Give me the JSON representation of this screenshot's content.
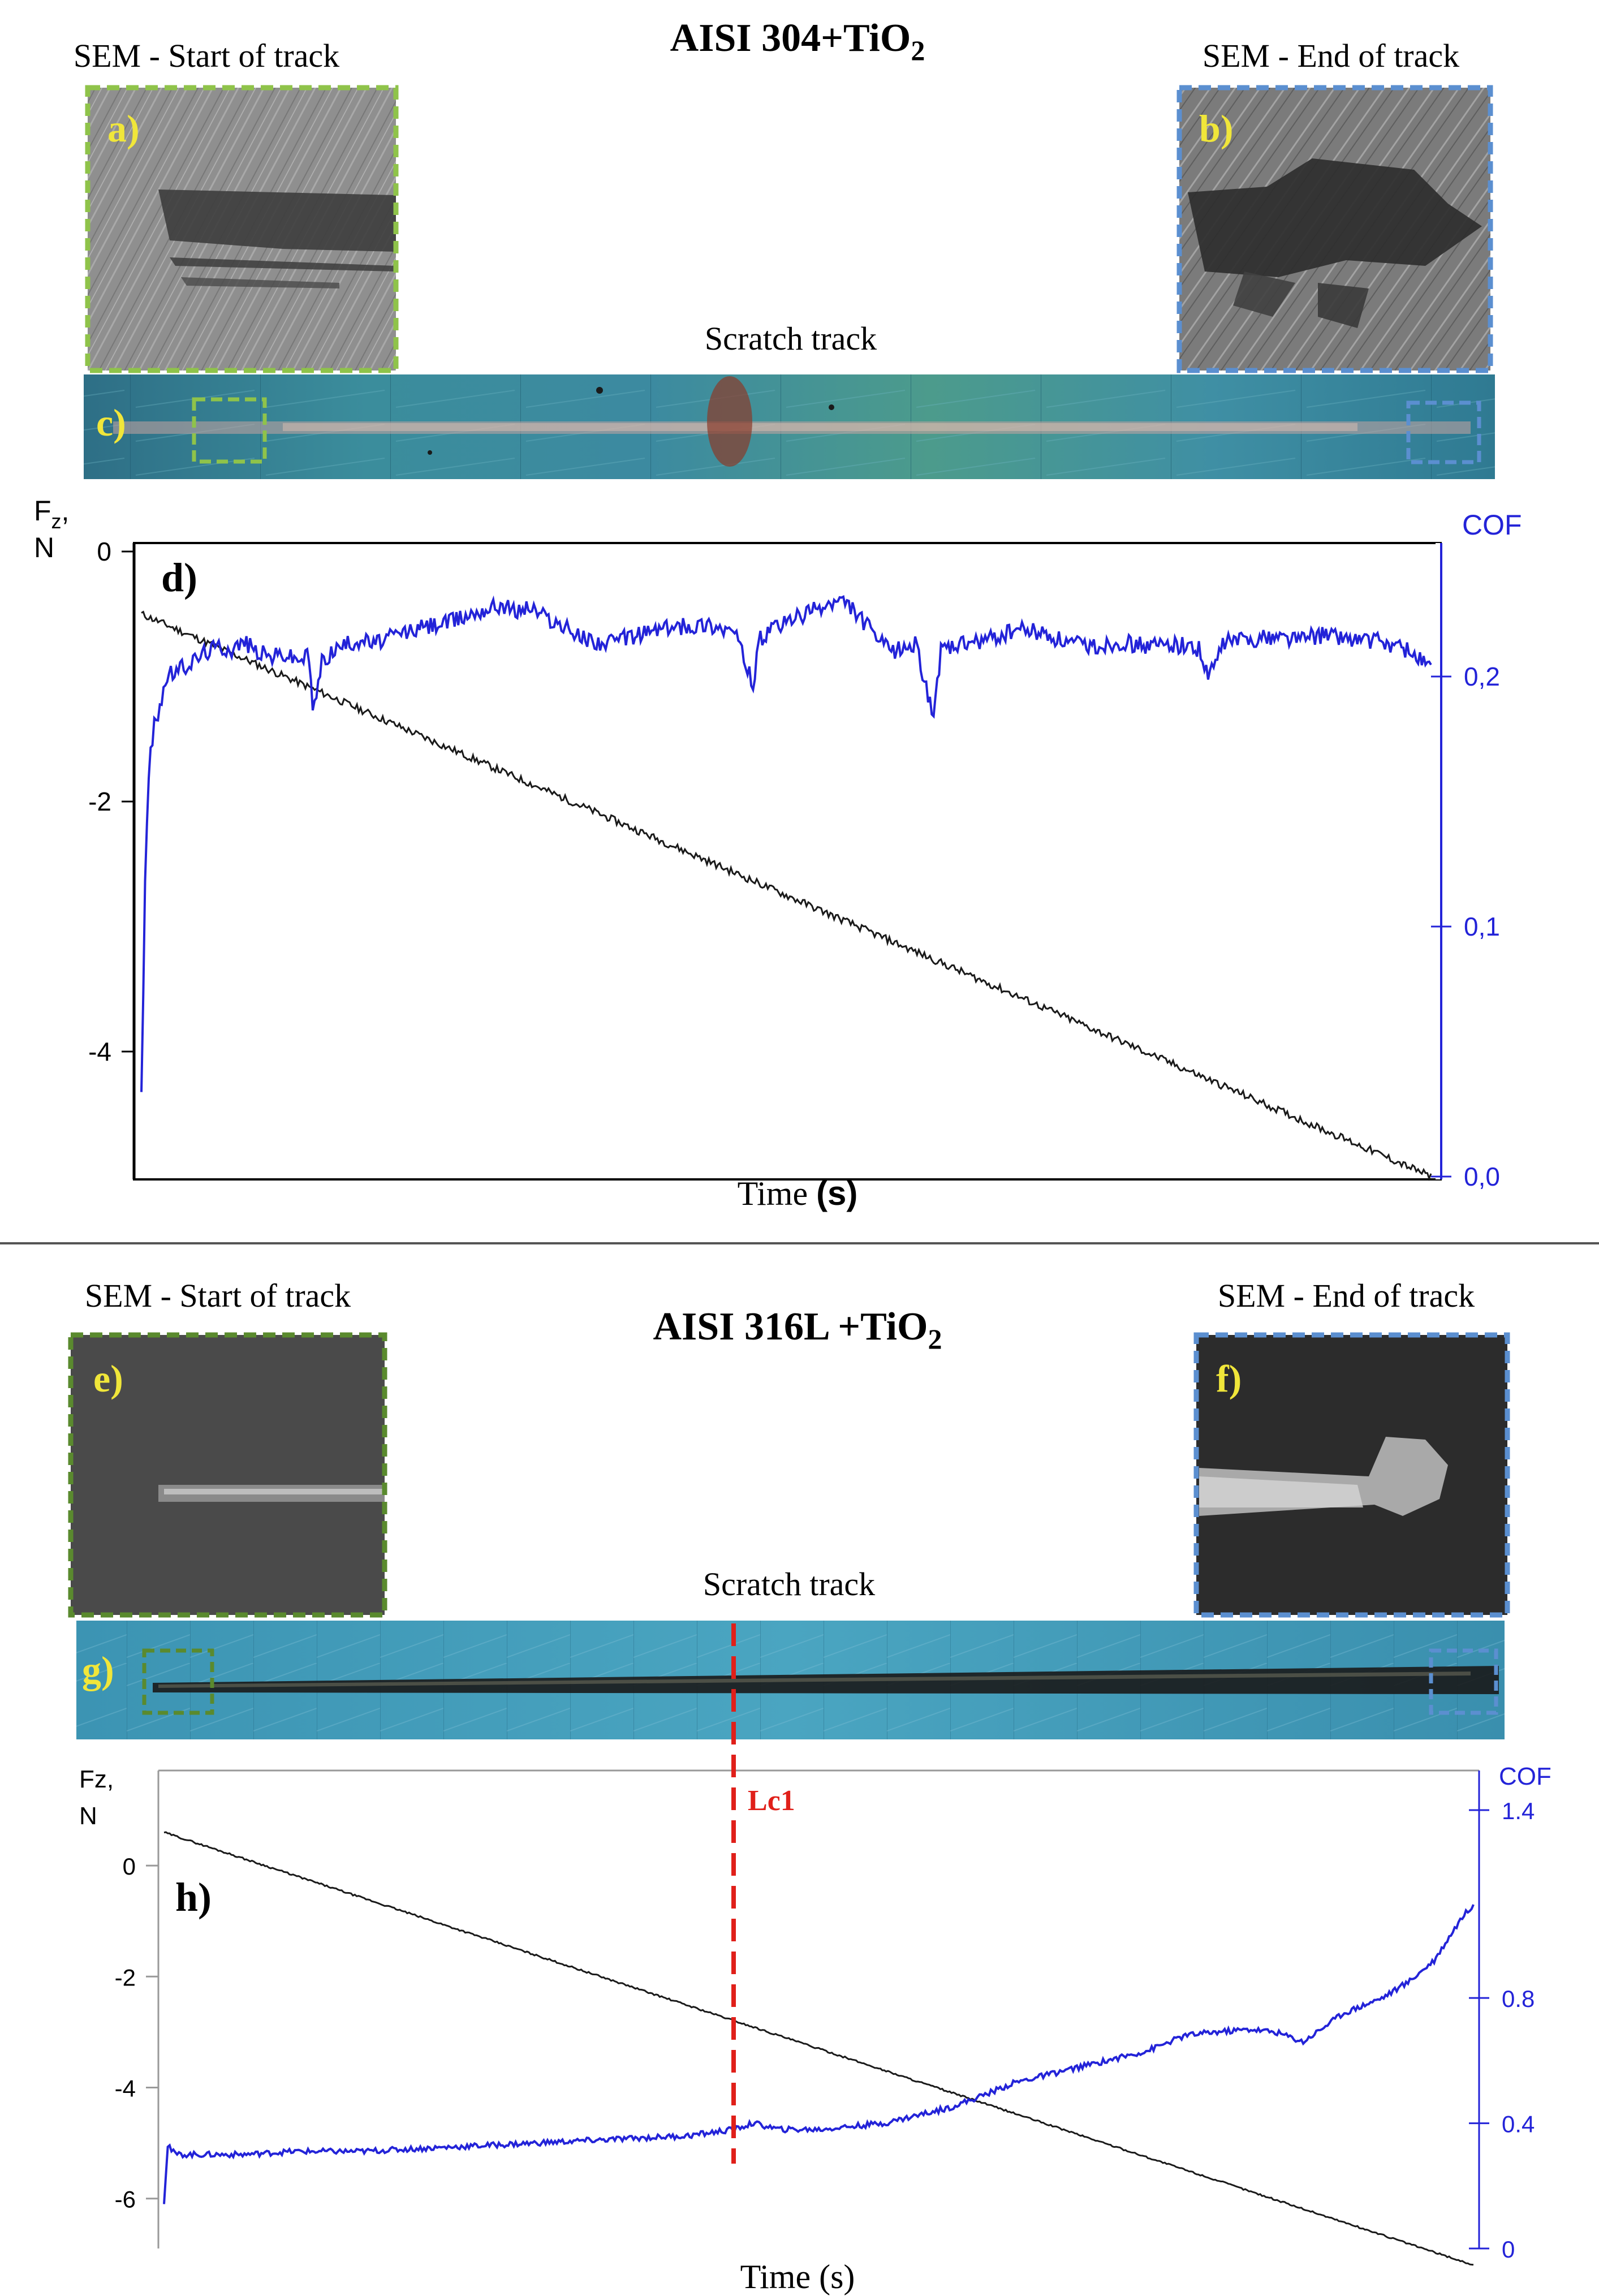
{
  "top": {
    "title_main": "AISI 304+TiO",
    "title_sub": "2",
    "sem_start_label": "SEM - Start of track",
    "sem_end_label": "SEM - End of track",
    "scratch_label": "Scratch track",
    "panel_a": "a)",
    "panel_b": "b)",
    "panel_c": "c)",
    "panel_d": "d)",
    "green_box_color": "#8fc34a",
    "blue_box_color": "#5b8fd0"
  },
  "bottom": {
    "title_main": "AISI 316L +TiO",
    "title_sub": "2",
    "sem_start_label": "SEM - Start of track",
    "sem_end_label": "SEM - End of track",
    "scratch_label": "Scratch track",
    "panel_e": "e)",
    "panel_f": "f)",
    "panel_g": "g)",
    "panel_h": "h)",
    "lc_label": "Lc1",
    "green_box_color": "#5a8a2e",
    "blue_box_color": "#5b8fd0",
    "lc_color": "#e0201a"
  },
  "chart_data": [
    {
      "type": "line",
      "panel": "d)",
      "xlabel": "Time (s)",
      "ylabel_left": "Fz, N",
      "ylabel_right": "COF",
      "left_ticks": [
        "0",
        "-2",
        "-4"
      ],
      "right_ticks": [
        "0,2",
        "0,1",
        "0,0"
      ],
      "ylim_left": [
        -5,
        0
      ],
      "ylim_right": [
        0,
        0.25
      ],
      "xlim": [
        0,
        100
      ],
      "colors": {
        "force": "#1a1a1a",
        "cof": "#2323d8",
        "axis_right": "#2323d8"
      },
      "series": [
        {
          "axis": "left",
          "x": [
            0,
            10,
            20,
            30,
            40,
            50,
            60,
            70,
            80,
            90,
            100
          ],
          "values": [
            -0.5,
            -0.95,
            -1.4,
            -1.85,
            -2.3,
            -2.75,
            -3.2,
            -3.65,
            -4.1,
            -4.55,
            -5.0
          ]
        },
        {
          "axis": "right",
          "x": [
            0,
            0.3,
            0.6,
            1,
            1.5,
            2,
            3,
            4,
            5,
            6,
            7,
            8,
            9,
            10,
            11,
            12,
            13,
            13.3,
            14,
            15,
            16,
            17,
            18,
            20,
            22,
            24,
            26,
            28,
            29,
            30,
            32,
            34,
            36,
            38,
            40,
            42,
            44,
            46,
            47.4,
            48,
            50,
            52,
            54,
            55,
            56,
            58,
            60,
            61.4,
            62,
            64,
            66,
            68,
            70,
            72,
            74,
            76,
            78,
            80,
            82,
            82.7,
            84,
            86,
            88,
            90,
            92,
            94,
            96,
            98,
            100
          ],
          "values": [
            0.035,
            0.12,
            0.165,
            0.18,
            0.19,
            0.2,
            0.203,
            0.206,
            0.21,
            0.212,
            0.211,
            0.214,
            0.21,
            0.208,
            0.209,
            0.207,
            0.208,
            0.185,
            0.206,
            0.211,
            0.213,
            0.215,
            0.213,
            0.217,
            0.22,
            0.222,
            0.226,
            0.229,
            0.226,
            0.228,
            0.222,
            0.216,
            0.213,
            0.216,
            0.219,
            0.22,
            0.221,
            0.218,
            0.197,
            0.215,
            0.222,
            0.226,
            0.23,
            0.228,
            0.222,
            0.21,
            0.213,
            0.185,
            0.21,
            0.213,
            0.215,
            0.219,
            0.217,
            0.213,
            0.212,
            0.214,
            0.212,
            0.213,
            0.211,
            0.199,
            0.214,
            0.215,
            0.216,
            0.215,
            0.217,
            0.215,
            0.214,
            0.211,
            0.204
          ]
        }
      ]
    },
    {
      "type": "line",
      "panel": "h)",
      "xlabel": "Time (s)",
      "ylabel_left": "Fz, N",
      "ylabel_right": "COF",
      "left_ticks": [
        "0",
        "-2",
        "-4",
        "-6"
      ],
      "right_ticks": [
        "1.4",
        "0.8",
        "0.4",
        "0"
      ],
      "ylim_left": [
        -6.9,
        1.0
      ],
      "ylim_right": [
        0,
        1.4
      ],
      "xlim": [
        0,
        100
      ],
      "critical_load": {
        "label": "Lc1",
        "x": 43.5
      },
      "colors": {
        "force": "#1a1a1a",
        "cof": "#2323d8",
        "axis_right": "#2323d8"
      },
      "series": [
        {
          "axis": "left",
          "x": [
            0,
            10,
            20,
            30,
            40,
            50,
            60,
            70,
            80,
            90,
            100
          ],
          "values": [
            0.6,
            -0.18,
            -0.96,
            -1.74,
            -2.52,
            -3.3,
            -4.08,
            -4.86,
            -5.64,
            -6.42,
            -7.2
          ]
        },
        {
          "axis": "right",
          "x": [
            0,
            0.3,
            0.6,
            1,
            3,
            6,
            10,
            15,
            20,
            25,
            30,
            35,
            40,
            43.5,
            45,
            47,
            50,
            55,
            60,
            62,
            65,
            70,
            75,
            78,
            80,
            83,
            85,
            87,
            90,
            93,
            95,
            97,
            99,
            100
          ],
          "values": [
            0.15,
            0.34,
            0.31,
            0.3,
            0.3,
            0.3,
            0.31,
            0.31,
            0.32,
            0.33,
            0.34,
            0.35,
            0.36,
            0.38,
            0.4,
            0.38,
            0.38,
            0.4,
            0.45,
            0.48,
            0.53,
            0.58,
            0.63,
            0.68,
            0.69,
            0.7,
            0.69,
            0.66,
            0.75,
            0.8,
            0.85,
            0.92,
            1.05,
            1.1
          ]
        }
      ]
    }
  ]
}
